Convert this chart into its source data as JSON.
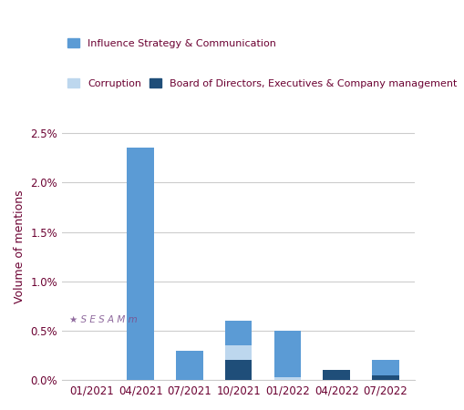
{
  "categories": [
    "01/2021",
    "04/2021",
    "07/2021",
    "10/2021",
    "01/2022",
    "04/2022",
    "07/2022"
  ],
  "influence": [
    0.0,
    0.0235,
    0.003,
    0.0025,
    0.0047,
    0.0,
    0.0015
  ],
  "corruption": [
    0.0,
    0.0,
    0.0,
    0.0015,
    0.0003,
    0.0,
    0.0
  ],
  "board": [
    0.0,
    0.0,
    0.0,
    0.002,
    0.0,
    0.001,
    0.0005
  ],
  "color_influence": "#5b9bd5",
  "color_corruption": "#bdd7ee",
  "color_board": "#1f4e79",
  "legend_influence": "Influence Strategy & Communication",
  "legend_corruption": "Corruption",
  "legend_board": "Board of Directors, Executives & Company management",
  "ylabel": "Volume of mentions",
  "ylim_max": 0.027,
  "yticks": [
    0.0,
    0.005,
    0.01,
    0.015,
    0.02,
    0.025
  ],
  "ytick_labels": [
    "0.0%",
    "0.5%",
    "1.0%",
    "1.5%",
    "2.0%",
    "2.5%"
  ],
  "text_color": "#6b0031",
  "grid_color": "#cccccc",
  "bg_color": "#ffffff",
  "watermark_text": "★ S E S A M m",
  "watermark_color": "#7b4f8c"
}
